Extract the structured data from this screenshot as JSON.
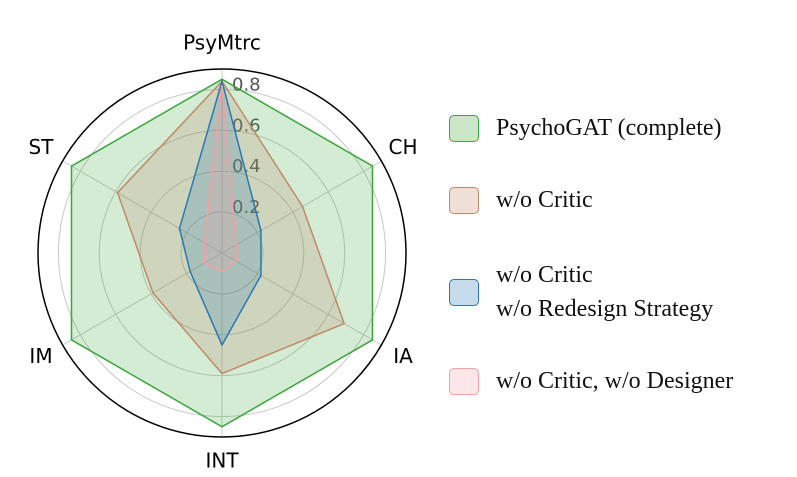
{
  "chart_data": {
    "type": "radar",
    "categories": [
      "PsyMtrc",
      "CH",
      "IA",
      "INT",
      "IM",
      "ST"
    ],
    "ylim": [
      0,
      0.9
    ],
    "yticks": [
      0.2,
      0.4,
      0.6,
      0.8
    ],
    "grid": true,
    "legend": "right",
    "series": [
      {
        "name": "PsychoGAT (complete)",
        "color": "#3aa63a",
        "values": [
          0.85,
          0.85,
          0.85,
          0.85,
          0.85,
          0.85
        ]
      },
      {
        "name": "w/o Critic",
        "color": "#c08a68",
        "values": [
          0.84,
          0.455,
          0.69,
          0.59,
          0.39,
          0.59
        ]
      },
      {
        "name": "w/o Critic\nw/o Redesign Strategy",
        "color": "#2a78b5",
        "values": [
          0.84,
          0.22,
          0.22,
          0.45,
          0.18,
          0.24
        ]
      },
      {
        "name": "w/o Critic, w/o Designer",
        "color": "#f2a0a4",
        "values": [
          0.82,
          0.08,
          0.08,
          0.09,
          0.1,
          0.1
        ]
      }
    ]
  }
}
